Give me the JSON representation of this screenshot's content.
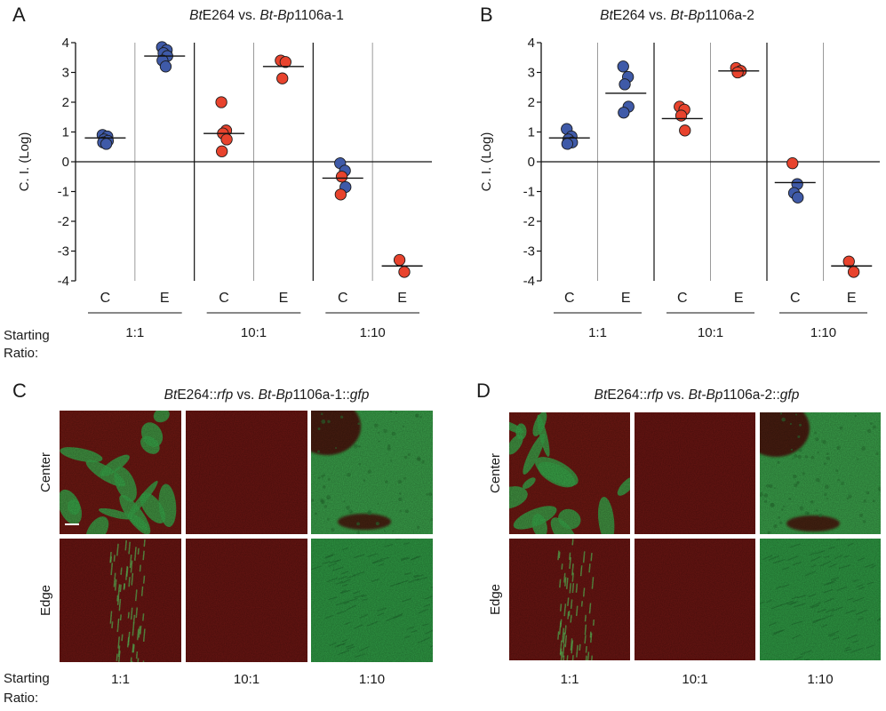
{
  "panels": {
    "A": {
      "letter": "A",
      "title_parts": [
        {
          "t": "Bt",
          "i": true
        },
        {
          "t": "E264 vs. ",
          "i": false
        },
        {
          "t": "Bt-Bp",
          "i": true
        },
        {
          "t": "1106a-1",
          "i": false
        }
      ]
    },
    "B": {
      "letter": "B",
      "title_parts": [
        {
          "t": "Bt",
          "i": true
        },
        {
          "t": "E264 vs. ",
          "i": false
        },
        {
          "t": "Bt-Bp",
          "i": true
        },
        {
          "t": "1106a-2",
          "i": false
        }
      ]
    },
    "C": {
      "letter": "C",
      "title_parts": [
        {
          "t": "Bt",
          "i": true
        },
        {
          "t": "E264::",
          "i": false
        },
        {
          "t": "rfp",
          "i": true
        },
        {
          "t": " vs. ",
          "i": false
        },
        {
          "t": "Bt-Bp",
          "i": true
        },
        {
          "t": "1106a-1::",
          "i": false
        },
        {
          "t": "gfp",
          "i": true
        }
      ]
    },
    "D": {
      "letter": "D",
      "title_parts": [
        {
          "t": "Bt",
          "i": true
        },
        {
          "t": "E264::",
          "i": false
        },
        {
          "t": "rfp",
          "i": true
        },
        {
          "t": " vs. ",
          "i": false
        },
        {
          "t": "Bt-Bp",
          "i": true
        },
        {
          "t": "1106a-2::",
          "i": false
        },
        {
          "t": "gfp",
          "i": true
        }
      ]
    }
  },
  "labels": {
    "starting_line1": "Starting",
    "starting_line2": "Ratio:",
    "row_center": "Center",
    "row_edge": "Edge"
  },
  "colors": {
    "blue": "#3f5aa8",
    "red": "#e8432d",
    "red_tissue": "#6b1410",
    "green_tissue": "#3aa84a"
  },
  "chart_data": [
    {
      "type": "scatter",
      "panel": "A",
      "ylabel": "C. I. (Log)",
      "ylim": [
        -4,
        4
      ],
      "yticks": [
        4,
        3,
        2,
        1,
        0,
        -1,
        -2,
        -3,
        -4
      ],
      "ratios": [
        "1:1",
        "10:1",
        "1:10"
      ],
      "positions": [
        "C",
        "E"
      ],
      "groups": [
        {
          "ratio": "1:1",
          "position": "C",
          "color": "blue",
          "median": 0.8,
          "points": [
            0.9,
            0.85,
            0.75,
            0.7,
            0.65,
            0.6
          ]
        },
        {
          "ratio": "1:1",
          "position": "E",
          "color": "blue",
          "median": 3.55,
          "points": [
            3.85,
            3.75,
            3.65,
            3.55,
            3.4,
            3.2
          ]
        },
        {
          "ratio": "10:1",
          "position": "C",
          "color": "red",
          "median": 0.95,
          "points": [
            2.0,
            1.05,
            0.95,
            0.75,
            0.35
          ]
        },
        {
          "ratio": "10:1",
          "position": "E",
          "color": "red",
          "median": 3.2,
          "points": [
            3.4,
            3.35,
            2.8
          ]
        },
        {
          "ratio": "1:10",
          "position": "C",
          "color": "mixed",
          "median": -0.55,
          "points": [
            {
              "v": -0.05,
              "c": "blue"
            },
            {
              "v": -0.3,
              "c": "blue"
            },
            {
              "v": -0.5,
              "c": "red"
            },
            {
              "v": -0.85,
              "c": "blue"
            },
            {
              "v": -1.1,
              "c": "red"
            }
          ]
        },
        {
          "ratio": "1:10",
          "position": "E",
          "color": "red",
          "median": -3.5,
          "points": [
            -3.3,
            -3.7
          ]
        }
      ]
    },
    {
      "type": "scatter",
      "panel": "B",
      "ylabel": "C. I. (Log)",
      "ylim": [
        -4,
        4
      ],
      "yticks": [
        4,
        3,
        2,
        1,
        0,
        -1,
        -2,
        -3,
        -4
      ],
      "ratios": [
        "1:1",
        "10:1",
        "1:10"
      ],
      "positions": [
        "C",
        "E"
      ],
      "groups": [
        {
          "ratio": "1:1",
          "position": "C",
          "color": "blue",
          "median": 0.8,
          "points": [
            1.1,
            0.85,
            0.75,
            0.65,
            0.6
          ]
        },
        {
          "ratio": "1:1",
          "position": "E",
          "color": "blue",
          "median": 2.3,
          "points": [
            3.2,
            2.85,
            2.6,
            1.85,
            1.65
          ]
        },
        {
          "ratio": "10:1",
          "position": "C",
          "color": "red",
          "median": 1.45,
          "points": [
            1.85,
            1.75,
            1.55,
            1.05
          ]
        },
        {
          "ratio": "10:1",
          "position": "E",
          "color": "red",
          "median": 3.05,
          "points": [
            3.15,
            3.05,
            3.0
          ]
        },
        {
          "ratio": "1:10",
          "position": "C",
          "color": "mixed",
          "median": -0.7,
          "points": [
            {
              "v": -0.05,
              "c": "red"
            },
            {
              "v": -0.75,
              "c": "blue"
            },
            {
              "v": -1.05,
              "c": "blue"
            },
            {
              "v": -1.2,
              "c": "blue"
            }
          ]
        },
        {
          "ratio": "1:10",
          "position": "E",
          "color": "red",
          "median": -3.5,
          "points": [
            -3.35,
            -3.7
          ]
        }
      ]
    }
  ],
  "micro_ratios": [
    "1:1",
    "10:1",
    "1:10"
  ],
  "micrographs": {
    "C": [
      {
        "row": "Center",
        "ratio": "1:1",
        "pattern": "red-green-patches"
      },
      {
        "row": "Center",
        "ratio": "10:1",
        "pattern": "red"
      },
      {
        "row": "Center",
        "ratio": "1:10",
        "pattern": "green-red-patch"
      },
      {
        "row": "Edge",
        "ratio": "1:1",
        "pattern": "red-green-streak"
      },
      {
        "row": "Edge",
        "ratio": "10:1",
        "pattern": "red"
      },
      {
        "row": "Edge",
        "ratio": "1:10",
        "pattern": "green"
      }
    ],
    "D": [
      {
        "row": "Center",
        "ratio": "1:1",
        "pattern": "red-green-patches"
      },
      {
        "row": "Center",
        "ratio": "10:1",
        "pattern": "red"
      },
      {
        "row": "Center",
        "ratio": "1:10",
        "pattern": "green-red-patch"
      },
      {
        "row": "Edge",
        "ratio": "1:1",
        "pattern": "red-green-streak"
      },
      {
        "row": "Edge",
        "ratio": "10:1",
        "pattern": "red"
      },
      {
        "row": "Edge",
        "ratio": "1:10",
        "pattern": "green"
      }
    ]
  }
}
